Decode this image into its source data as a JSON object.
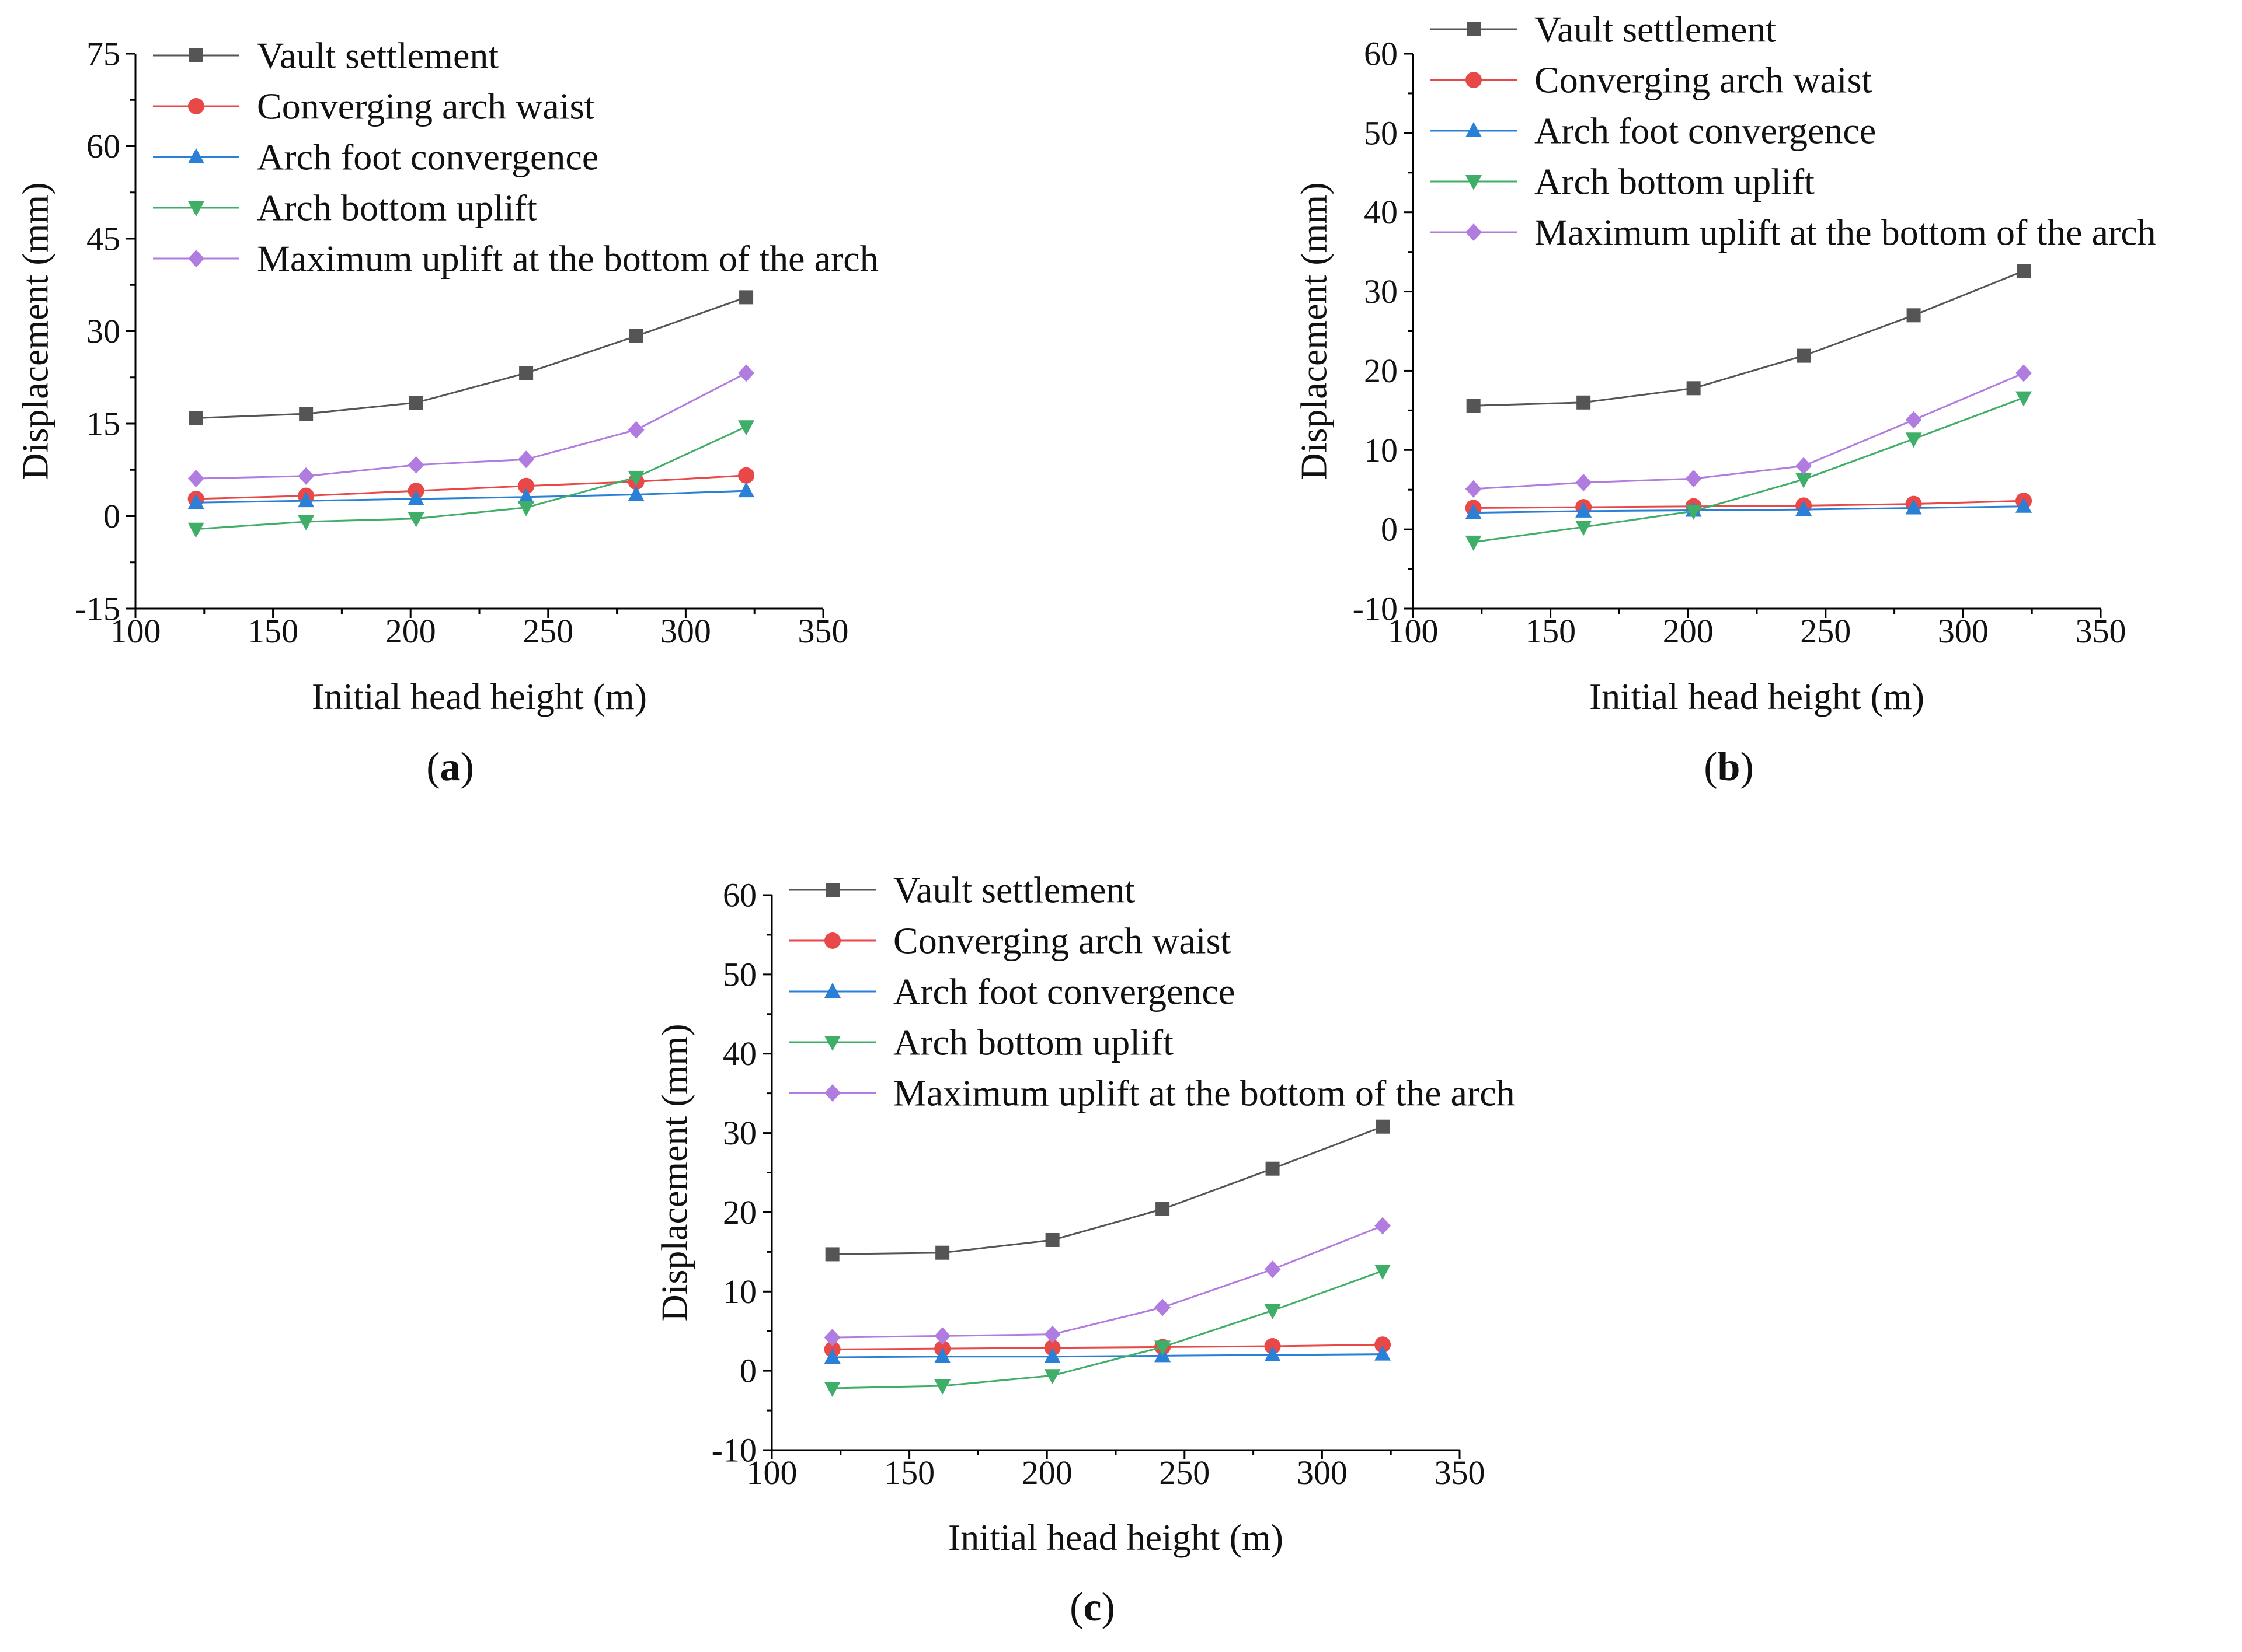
{
  "chart_data": [
    {
      "type": "line",
      "panel_label": "a",
      "xlabel": "Initial head height (m)",
      "ylabel": "Displacement (mm)",
      "xlim": [
        100,
        350
      ],
      "ylim": [
        -15,
        75
      ],
      "x_ticks": [
        100,
        150,
        200,
        250,
        300,
        350
      ],
      "y_ticks": [
        -15,
        0,
        15,
        30,
        45,
        60,
        75
      ],
      "x": [
        122,
        162,
        202,
        242,
        282,
        322
      ],
      "legend_position": "top-left",
      "series": [
        {
          "name": "Vault settlement",
          "color": "#555555",
          "marker": "square",
          "values": [
            15.9,
            16.6,
            18.4,
            23.2,
            29.2,
            35.5
          ]
        },
        {
          "name": "Converging arch waist",
          "color": "#e84848",
          "marker": "circle",
          "values": [
            2.8,
            3.3,
            4.1,
            4.9,
            5.6,
            6.6
          ]
        },
        {
          "name": "Arch foot convergence",
          "color": "#2a7fd6",
          "marker": "triangle-up",
          "values": [
            2.2,
            2.5,
            2.8,
            3.1,
            3.5,
            4.1
          ]
        },
        {
          "name": "Arch bottom uplift",
          "color": "#3fae68",
          "marker": "triangle-down",
          "values": [
            -2.1,
            -0.9,
            -0.4,
            1.4,
            6.3,
            14.5
          ]
        },
        {
          "name": "Maximum uplift at the bottom of the arch",
          "color": "#b07ce0",
          "marker": "diamond",
          "values": [
            6.1,
            6.5,
            8.3,
            9.2,
            14.0,
            23.2
          ]
        }
      ]
    },
    {
      "type": "line",
      "panel_label": "b",
      "xlabel": "Initial head height (m)",
      "ylabel": "Displacement (mm)",
      "xlim": [
        100,
        350
      ],
      "ylim": [
        -10,
        60
      ],
      "x_ticks": [
        100,
        150,
        200,
        250,
        300,
        350
      ],
      "y_ticks": [
        -10,
        0,
        10,
        20,
        30,
        40,
        50,
        60
      ],
      "x": [
        122,
        162,
        202,
        242,
        282,
        322
      ],
      "legend_position": "top-left",
      "series": [
        {
          "name": "Vault settlement",
          "color": "#555555",
          "marker": "square",
          "values": [
            15.6,
            16.0,
            17.8,
            21.9,
            27.0,
            32.6
          ]
        },
        {
          "name": "Converging arch waist",
          "color": "#e84848",
          "marker": "circle",
          "values": [
            2.7,
            2.8,
            2.9,
            3.0,
            3.2,
            3.6
          ]
        },
        {
          "name": "Arch foot convergence",
          "color": "#2a7fd6",
          "marker": "triangle-up",
          "values": [
            2.1,
            2.3,
            2.4,
            2.5,
            2.7,
            2.9
          ]
        },
        {
          "name": "Arch bottom uplift",
          "color": "#3fae68",
          "marker": "triangle-down",
          "values": [
            -1.6,
            0.3,
            2.3,
            6.3,
            11.4,
            16.6
          ]
        },
        {
          "name": "Maximum uplift at the bottom of the arch",
          "color": "#b07ce0",
          "marker": "diamond",
          "values": [
            5.1,
            5.9,
            6.4,
            8.0,
            13.8,
            19.7
          ]
        }
      ]
    },
    {
      "type": "line",
      "panel_label": "c",
      "xlabel": "Initial head height (m)",
      "ylabel": "Displacement (mm)",
      "xlim": [
        100,
        350
      ],
      "ylim": [
        -10,
        60
      ],
      "x_ticks": [
        100,
        150,
        200,
        250,
        300,
        350
      ],
      "y_ticks": [
        -10,
        0,
        10,
        20,
        30,
        40,
        50,
        60
      ],
      "x": [
        122,
        162,
        202,
        242,
        282,
        322
      ],
      "legend_position": "top-left",
      "series": [
        {
          "name": "Vault settlement",
          "color": "#555555",
          "marker": "square",
          "values": [
            14.7,
            14.9,
            16.5,
            20.4,
            25.5,
            30.8
          ]
        },
        {
          "name": "Converging arch waist",
          "color": "#e84848",
          "marker": "circle",
          "values": [
            2.7,
            2.8,
            2.9,
            3.0,
            3.1,
            3.3
          ]
        },
        {
          "name": "Arch foot convergence",
          "color": "#2a7fd6",
          "marker": "triangle-up",
          "values": [
            1.7,
            1.8,
            1.8,
            1.9,
            2.0,
            2.1
          ]
        },
        {
          "name": "Arch bottom uplift",
          "color": "#3fae68",
          "marker": "triangle-down",
          "values": [
            -2.2,
            -1.9,
            -0.6,
            3.0,
            7.6,
            12.6
          ]
        },
        {
          "name": "Maximum uplift at the bottom of the arch",
          "color": "#b07ce0",
          "marker": "diamond",
          "values": [
            4.2,
            4.4,
            4.6,
            8.0,
            12.8,
            18.3
          ]
        }
      ]
    }
  ]
}
